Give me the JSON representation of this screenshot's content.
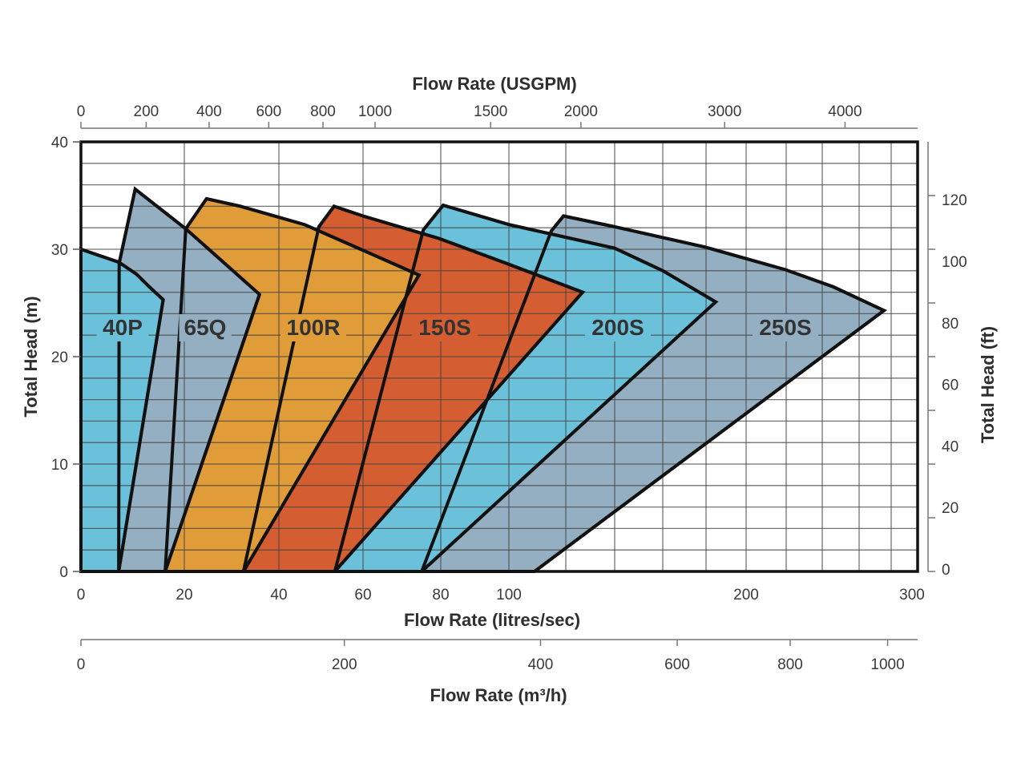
{
  "chart_data": {
    "type": "area",
    "title": "",
    "grid": true,
    "x_scale": "nonlinear (compressed toward high flow)",
    "x_axes": {
      "bottom": {
        "label": "Flow Rate (litres/sec)",
        "ticks": [
          0,
          20,
          40,
          60,
          80,
          100,
          200,
          300
        ],
        "range": [
          0,
          300
        ]
      },
      "top": {
        "label": "Flow Rate (USGPM)",
        "ticks": [
          0,
          200,
          400,
          600,
          800,
          1000,
          1500,
          2000,
          3000,
          4000
        ]
      },
      "bottom2": {
        "label": "Flow Rate (m³/h)",
        "ticks": [
          0,
          200,
          400,
          600,
          800,
          1000
        ]
      }
    },
    "y_axes": {
      "left": {
        "label": "Total Head (m)",
        "ticks": [
          0,
          10,
          20,
          30,
          40
        ],
        "range": [
          0,
          40
        ]
      },
      "right": {
        "label": "Total Head (ft)",
        "ticks": [
          0,
          20,
          40,
          60,
          80,
          100,
          120
        ]
      }
    },
    "series": [
      {
        "name": "250S",
        "color": "#94afc1",
        "points": [
          [
            114.9,
            31.7
          ],
          [
            119.2,
            33.1
          ],
          [
            140,
            32.1
          ],
          [
            179.6,
            30.2
          ],
          [
            219.6,
            28.1
          ],
          [
            246,
            26.5
          ],
          [
            275.5,
            24.3
          ],
          [
            109,
            0
          ],
          [
            75.1,
            0
          ]
        ]
      },
      {
        "name": "200S",
        "color": "#6bc1da",
        "points": [
          [
            75.5,
            31.8
          ],
          [
            80.7,
            34.1
          ],
          [
            100,
            32.3
          ],
          [
            140,
            30.1
          ],
          [
            160,
            28.0
          ],
          [
            184.8,
            25.1
          ],
          [
            75.1,
            0
          ],
          [
            53.3,
            0
          ]
        ]
      },
      {
        "name": "150S",
        "color": "#d45d31",
        "points": [
          [
            49.5,
            32.1
          ],
          [
            53.1,
            34.0
          ],
          [
            60,
            33.1
          ],
          [
            79.6,
            31.0
          ],
          [
            100,
            28.6
          ],
          [
            126.9,
            26.0
          ],
          [
            53.3,
            0
          ],
          [
            32.5,
            0
          ]
        ]
      },
      {
        "name": "100R",
        "color": "#e09c38",
        "points": [
          [
            20.3,
            31.9
          ],
          [
            24.7,
            34.7
          ],
          [
            31.9,
            34.0
          ],
          [
            46.1,
            32.3
          ],
          [
            60,
            29.9
          ],
          [
            74.4,
            27.6
          ],
          [
            32.5,
            0
          ],
          [
            16.3,
            0
          ]
        ]
      },
      {
        "name": "65Q",
        "color": "#94afc1",
        "points": [
          [
            7.4,
            28.7
          ],
          [
            10.5,
            35.6
          ],
          [
            20.3,
            31.9
          ],
          [
            35.9,
            25.8
          ],
          [
            16.3,
            0
          ],
          [
            7.3,
            0
          ]
        ]
      },
      {
        "name": "40P",
        "color": "#6bc1da",
        "points": [
          [
            0,
            30
          ],
          [
            7.3,
            28.8
          ],
          [
            10.7,
            27.7
          ],
          [
            13.0,
            26.6
          ],
          [
            15.9,
            25.3
          ],
          [
            7.3,
            0
          ],
          [
            0,
            0
          ]
        ]
      }
    ]
  }
}
